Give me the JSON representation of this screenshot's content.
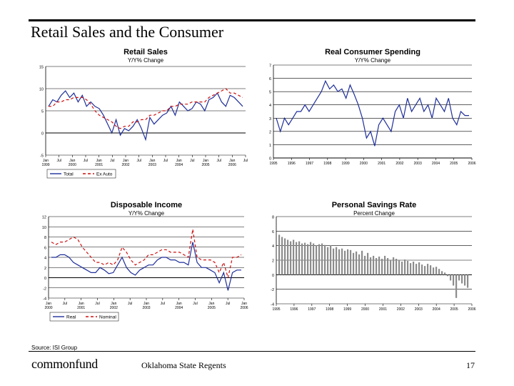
{
  "slide": {
    "title": "Retail Sales and the Consumer",
    "source": "Source: ISI Group",
    "brand": "commonfund",
    "footer_center": "Oklahoma State Regents",
    "page_number": "17"
  },
  "chart_data": [
    {
      "id": "retail",
      "type": "line",
      "title": "Retail Sales",
      "subtitle": "Y/Y% Change",
      "ylim": [
        -5,
        15
      ],
      "yticks": [
        -5,
        0,
        5,
        10,
        15
      ],
      "xlabels": [
        "Jan 1999",
        "Jul",
        "Jan 2000",
        "Jul",
        "Jan 2001",
        "Jul",
        "Jan 2002",
        "Jul",
        "Jan 2003",
        "Jul",
        "Jan 2004",
        "Jul",
        "Jan 2005",
        "Jul",
        "Jan 2006",
        "Jul"
      ],
      "legend": [
        "Total",
        "Ex Auto"
      ],
      "series": [
        {
          "name": "Total",
          "color": "#1f2f9a",
          "dash": "",
          "values": [
            6,
            7.5,
            7,
            8.5,
            9.5,
            8,
            9,
            7,
            8.5,
            6,
            7,
            6,
            5.5,
            4,
            2,
            0,
            3,
            -0.5,
            1,
            0.5,
            1.5,
            3,
            1,
            -1.5,
            3.5,
            2,
            3,
            4,
            4.5,
            6,
            4,
            7,
            6,
            5,
            5.5,
            7,
            6.5,
            5,
            7.5,
            8,
            9,
            7,
            6,
            8.5,
            8,
            7,
            6
          ]
        },
        {
          "name": "Ex Auto",
          "color": "#cc1111",
          "dash": "4,3",
          "values": [
            6,
            6,
            7,
            7,
            7.5,
            7.5,
            8,
            8,
            8,
            7.5,
            6.5,
            5,
            4,
            3.5,
            3,
            2.5,
            1.5,
            1,
            1.5,
            1.5,
            2.5,
            2.5,
            3,
            3,
            4,
            4,
            4.5,
            5,
            5,
            6,
            6,
            6.5,
            6.5,
            6.5,
            7,
            7,
            7,
            7,
            8,
            8.5,
            9,
            9.5,
            10,
            9,
            9,
            8.5,
            8
          ]
        }
      ]
    },
    {
      "id": "rcs",
      "type": "line",
      "title": "Real Consumer Spending",
      "subtitle": "Y/Y% Change",
      "ylim": [
        0,
        7
      ],
      "yticks": [
        0,
        1,
        2,
        3,
        4,
        5,
        6,
        7
      ],
      "xlabels": [
        "1995",
        "1996",
        "1997",
        "1998",
        "1999",
        "2000",
        "2001",
        "2002",
        "2003",
        "2004",
        "2005",
        "2006"
      ],
      "series": [
        {
          "name": "Real Consumer Spending",
          "color": "#1f2f9a",
          "dash": "",
          "values": [
            3,
            2,
            3,
            2.5,
            3,
            3.5,
            3.5,
            4,
            3.5,
            4,
            4.5,
            5,
            5.8,
            5.2,
            5.5,
            5,
            5.2,
            4.5,
            5.5,
            4.8,
            4,
            3,
            1.5,
            2,
            0.9,
            2.5,
            3,
            2.5,
            2,
            3.5,
            4,
            3,
            4.5,
            3.5,
            4,
            4.5,
            3.5,
            4,
            3,
            4.5,
            4,
            3.5,
            4.5,
            3,
            2.5,
            3.5,
            3.2,
            3.2
          ]
        }
      ]
    },
    {
      "id": "disp",
      "type": "line",
      "title": "Disposable Income",
      "subtitle": "Y/Y% Change",
      "ylim": [
        -4,
        12
      ],
      "yticks": [
        -4,
        -2,
        0,
        2,
        4,
        6,
        8,
        10,
        12
      ],
      "xlabels": [
        "Jan 2000",
        "Jul",
        "Jan 2001",
        "Jul",
        "Jan 2002",
        "Jul",
        "Jan 2003",
        "Jul",
        "Jan 2004",
        "Jul",
        "Jan 2005",
        "Jul",
        "Jan 2006"
      ],
      "legend": [
        "Real",
        "Nominal"
      ],
      "series": [
        {
          "name": "Real",
          "color": "#1f2f9a",
          "dash": "",
          "values": [
            4,
            4,
            4.5,
            4.5,
            4,
            3,
            2.5,
            2,
            1.5,
            1,
            1,
            2,
            1.5,
            0.8,
            1,
            2.5,
            4,
            2,
            1,
            0.5,
            1.5,
            2,
            2.5,
            2.5,
            3.5,
            4,
            4,
            3.5,
            3.5,
            3,
            3,
            2.5,
            7,
            3,
            2,
            2,
            1.5,
            1,
            -1,
            1,
            -2.5,
            1,
            1.5,
            1.5
          ]
        },
        {
          "name": "Nominal",
          "color": "#cc1111",
          "dash": "4,3",
          "values": [
            7,
            6.5,
            7,
            7,
            7.5,
            8,
            7.5,
            6,
            5,
            4,
            3,
            3,
            2.5,
            3,
            2.5,
            3.5,
            6,
            5,
            3.5,
            2.5,
            3,
            3.5,
            4.5,
            4.5,
            5,
            5.5,
            5.5,
            5,
            5,
            5,
            4.5,
            4,
            9.5,
            4,
            3.5,
            3.5,
            3.5,
            3,
            1,
            3,
            0,
            4,
            4,
            4.5
          ]
        }
      ]
    },
    {
      "id": "savings",
      "type": "bar",
      "title": "Personal Savings Rate",
      "subtitle": "Percent Change",
      "ylim": [
        -4,
        8
      ],
      "yticks": [
        -4,
        -2,
        0,
        2,
        4,
        6,
        8
      ],
      "xlabels": [
        "1995",
        "1996",
        "1997",
        "1998",
        "1999",
        "2000",
        "2001",
        "2002",
        "2003",
        "2004",
        "2005",
        "2006"
      ],
      "values": [
        5.5,
        5.2,
        5,
        4.8,
        4.6,
        4.8,
        4.5,
        4.6,
        4.3,
        4.4,
        4.2,
        4.5,
        4.3,
        4,
        4.2,
        4.3,
        4.1,
        3.8,
        4,
        3.6,
        3.8,
        3.5,
        3.6,
        3.3,
        3.5,
        3.4,
        3,
        3.2,
        2.8,
        3.3,
        2.6,
        3,
        2.4,
        2.6,
        2.3,
        2.5,
        2.2,
        2.6,
        2.3,
        2,
        2.4,
        2.2,
        2,
        1.8,
        2.1,
        1.9,
        1.6,
        1.8,
        1.5,
        1.7,
        1.4,
        1.2,
        1.5,
        1.3,
        1,
        1.1,
        0.8,
        0.5,
        0.3,
        -0.2,
        -0.8,
        -1.5,
        -3.2,
        -0.8,
        -1.2,
        -1.5,
        -1.8
      ]
    }
  ]
}
